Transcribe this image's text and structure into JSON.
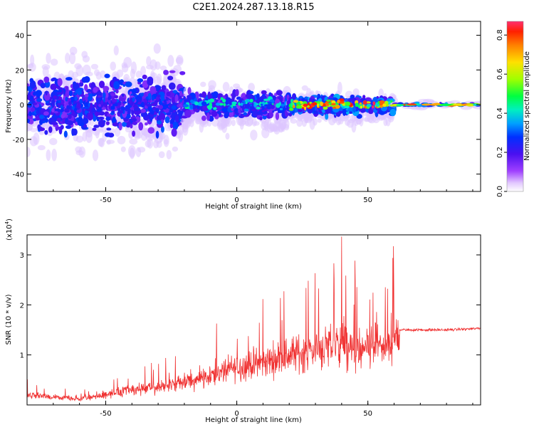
{
  "chart_data": [
    {
      "type": "heatmap",
      "title": "C2E1.2024.287.13.18.R15",
      "xlabel": "Height of straight line (km)",
      "ylabel": "Frequency (Hz)",
      "xlim": [
        -80,
        93
      ],
      "ylim": [
        -50,
        48
      ],
      "xticks": [
        -50,
        0,
        50
      ],
      "yticks": [
        -40,
        -20,
        0,
        20,
        40
      ],
      "colorbar": {
        "label": "Normalized spectral amplitude",
        "range": [
          0,
          0.87
        ],
        "ticks": [
          "0.0",
          "0.2",
          "0.4",
          "0.6",
          "0.8"
        ]
      },
      "regions": [
        {
          "x_range": [
            -80,
            -20
          ],
          "frequency_spread_hz": [
            -40,
            40
          ],
          "max_amplitude": 0.3
        },
        {
          "x_range": [
            -20,
            20
          ],
          "frequency_spread_hz": [
            -20,
            15
          ],
          "max_amplitude": 0.45
        },
        {
          "x_range": [
            20,
            60
          ],
          "frequency_spread_hz": [
            -15,
            10
          ],
          "max_amplitude": 0.87
        },
        {
          "x_range": [
            60,
            93
          ],
          "frequency_spread_hz": [
            -3,
            3
          ],
          "max_amplitude": 0.87
        }
      ]
    },
    {
      "type": "line",
      "xlabel": "Height of straight line (km)",
      "ylabel": "SNR (10 * v/v)",
      "y_multiplier": "(x10",
      "y_multiplier_exp": "4",
      "y_multiplier_close": ")",
      "xlim": [
        -80,
        93
      ],
      "ylim": [
        0,
        3.4
      ],
      "xticks": [
        -50,
        0,
        50
      ],
      "yticks": [
        1,
        2,
        3
      ],
      "line_color": "#f03232",
      "series": [
        {
          "name": "SNR",
          "x": [
            -80,
            -70,
            -60,
            -50,
            -40,
            -30,
            -20,
            -10,
            0,
            10,
            20,
            30,
            40,
            45,
            50,
            55,
            58,
            62,
            70,
            80,
            93
          ],
          "y": [
            0.2,
            0.15,
            0.12,
            0.2,
            0.3,
            0.35,
            0.45,
            0.6,
            0.75,
            0.85,
            1.0,
            1.1,
            1.25,
            1.0,
            1.1,
            1.2,
            1.1,
            1.5,
            1.5,
            1.5,
            1.53
          ]
        }
      ]
    }
  ]
}
